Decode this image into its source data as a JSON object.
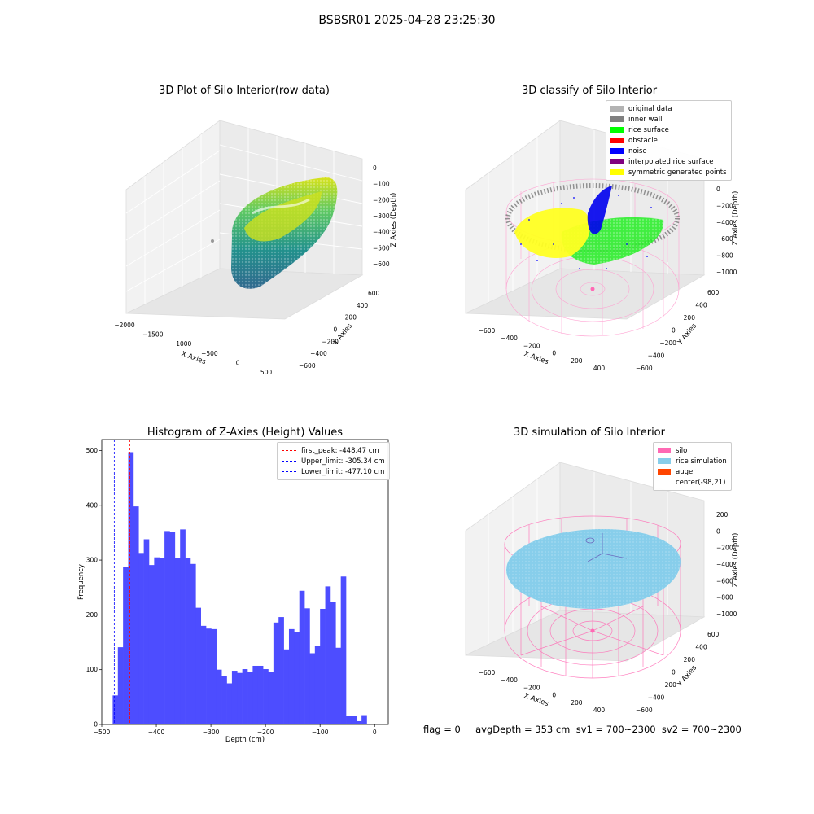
{
  "suptitle": "BSBSR01 2025-04-28 23:25:30",
  "footer": "flag = 0     avgDepth = 353 cm  sv1 = 700~2300  sv2 = 700~2300",
  "plots": {
    "raw": {
      "title": "3D Plot of Silo Interior(row data)",
      "xlabel": "X Axies",
      "ylabel": "Y Axies",
      "zlabel": "Z Axies (Depth)",
      "xticks": [
        "−2000",
        "−1500",
        "−1000",
        "−500",
        "0",
        "500"
      ],
      "yticks": [
        "−600",
        "−400",
        "−200",
        "0",
        "200",
        "400",
        "600"
      ],
      "zticks": [
        "0",
        "−100",
        "−200",
        "−300",
        "−400",
        "−500",
        "−600"
      ]
    },
    "classify": {
      "title": "3D classify of Silo Interior",
      "xlabel": "X Axies",
      "ylabel": "Y Axies",
      "zlabel": "Z Axies (Depth)",
      "xticks": [
        "−600",
        "−400",
        "−200",
        "0",
        "200",
        "400"
      ],
      "yticks": [
        "−600",
        "−400",
        "−200",
        "0",
        "200",
        "400",
        "600"
      ],
      "zticks": [
        "0",
        "−200",
        "−400",
        "−600",
        "−800",
        "−1000"
      ],
      "legend": [
        {
          "label": "original data",
          "color": "#b3b3b3"
        },
        {
          "label": "inner wall",
          "color": "#808080"
        },
        {
          "label": "rice surface",
          "color": "#00ff00"
        },
        {
          "label": "obstacle",
          "color": "#ff0000"
        },
        {
          "label": "noise",
          "color": "#0000ff"
        },
        {
          "label": "interpolated rice surface",
          "color": "#800080"
        },
        {
          "label": "symmetric generated points",
          "color": "#ffff00"
        }
      ]
    },
    "simulation": {
      "title": "3D simulation of Silo Interior",
      "xlabel": "X Axies",
      "ylabel": "Y Axies",
      "zlabel": "Z Axies (Depth)",
      "xticks": [
        "−600",
        "−400",
        "−200",
        "0",
        "200",
        "400"
      ],
      "yticks": [
        "−600",
        "−400",
        "−200",
        "0",
        "200",
        "400",
        "600"
      ],
      "zticks": [
        "200",
        "0",
        "−200",
        "−400",
        "−600",
        "−800",
        "−1000"
      ],
      "legend": [
        {
          "label": "silo",
          "color": "#ff69b4"
        },
        {
          "label": "rice simulation",
          "color": "#87ceeb"
        },
        {
          "label": "auger",
          "color": "#ff4500"
        },
        {
          "label": "center(-98,21)",
          "color": ""
        }
      ]
    }
  },
  "chart_data": {
    "type": "bar",
    "title": "Histogram of Z-Axies (Height) Values",
    "xlabel": "Depth (cm)",
    "ylabel": "Frequency",
    "xlim": [
      -500,
      25
    ],
    "ylim": [
      0,
      520
    ],
    "xticks": [
      -500,
      -400,
      -300,
      -200,
      -100,
      0
    ],
    "yticks": [
      0,
      100,
      200,
      300,
      400,
      500
    ],
    "bin_start": -480,
    "bin_width": 9.5,
    "values": [
      53,
      141,
      287,
      497,
      398,
      313,
      338,
      291,
      305,
      304,
      353,
      351,
      304,
      356,
      304,
      293,
      213,
      180,
      175,
      174,
      100,
      89,
      75,
      98,
      94,
      101,
      96,
      107,
      107,
      101,
      96,
      186,
      196,
      137,
      174,
      168,
      244,
      212,
      130,
      144,
      211,
      252,
      224,
      140,
      270,
      16,
      15,
      6,
      17
    ],
    "bar_color": "#4d4dff",
    "lines": [
      {
        "label": "first_peak: -448.47 cm",
        "x": -448.47,
        "color": "#ff0000"
      },
      {
        "label": "Upper_limit: -305.34 cm",
        "x": -305.34,
        "color": "#0000ff"
      },
      {
        "label": "Lower_limit: -477.10 cm",
        "x": -477.1,
        "color": "#0000ff"
      }
    ],
    "legend_position": "top-right"
  }
}
